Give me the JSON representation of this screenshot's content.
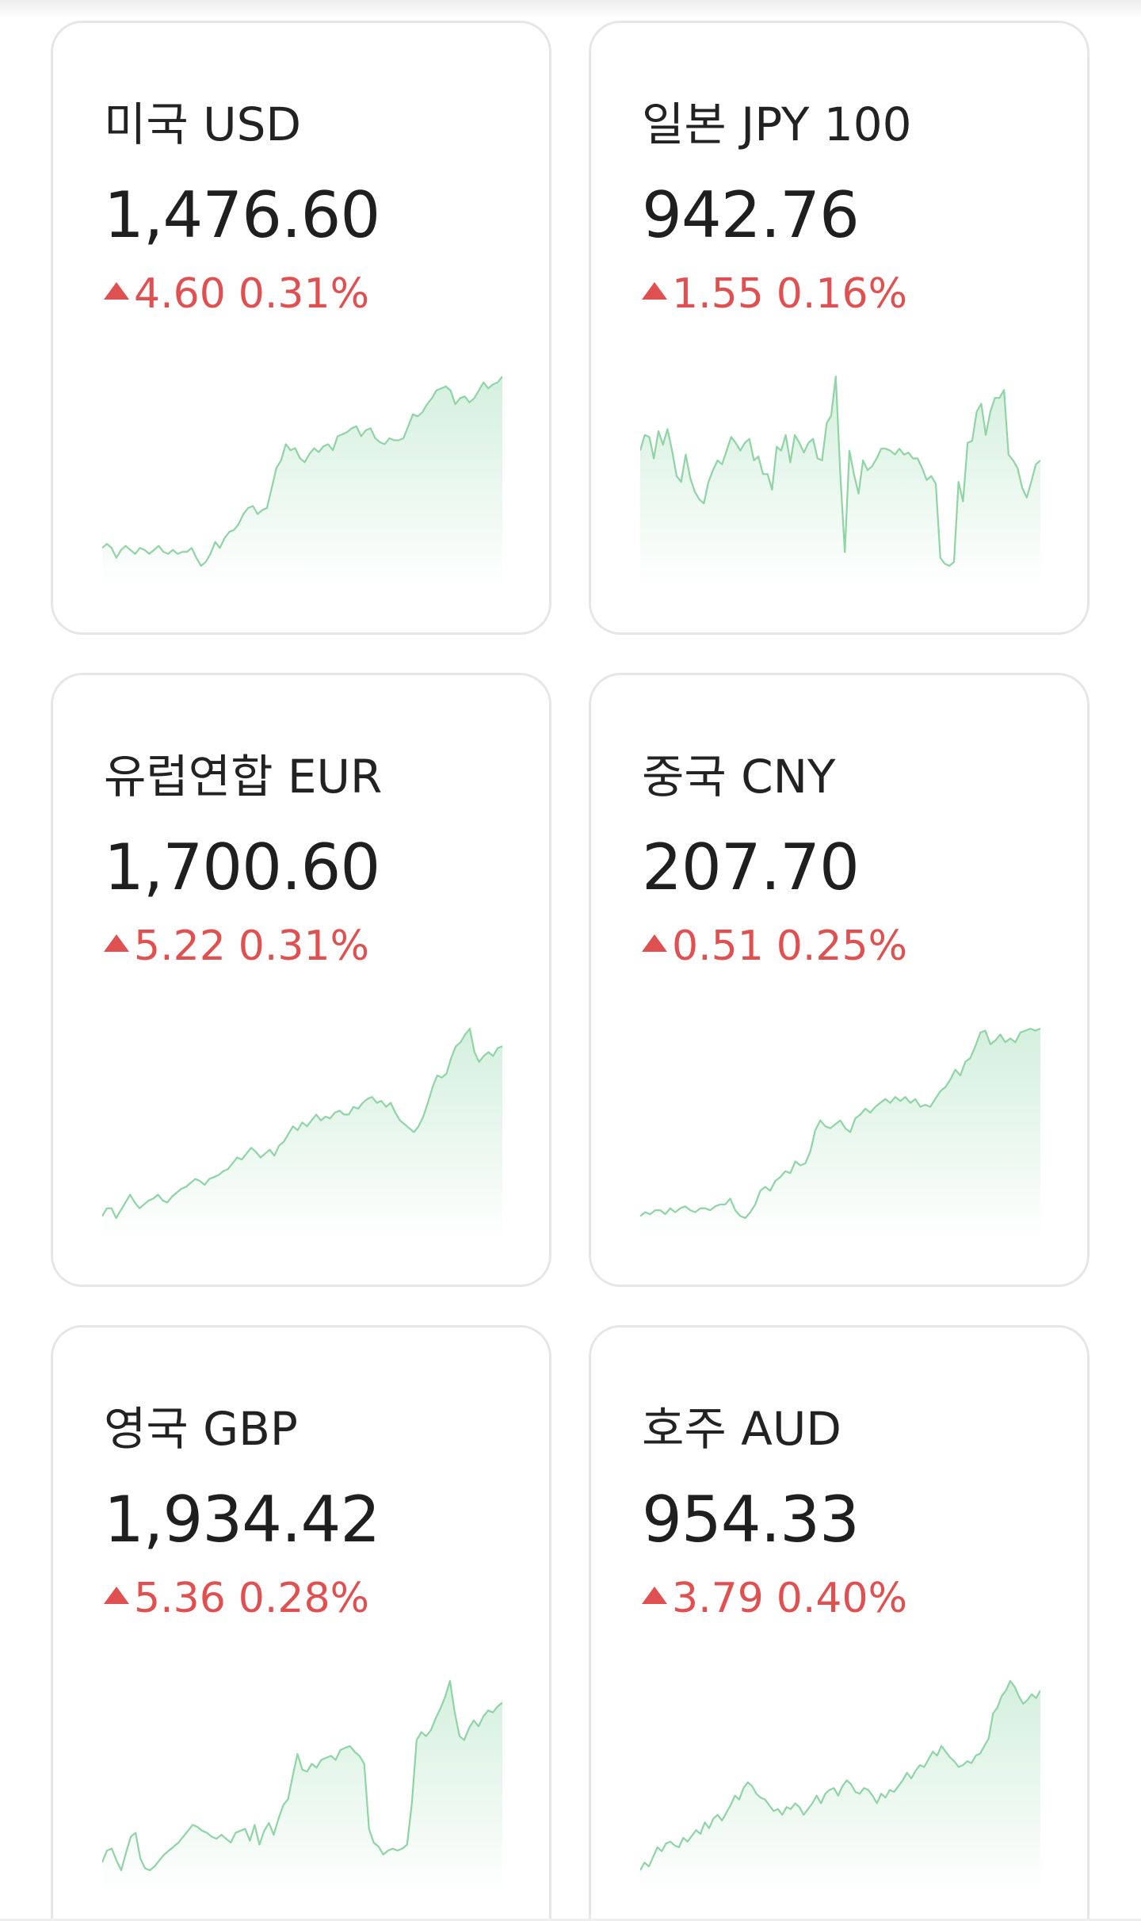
{
  "colors": {
    "up": "#e15050",
    "sparkline_stroke": "#8fd4a5",
    "sparkline_fill": "#cfeeda",
    "card_border": "#e6e6e6"
  },
  "cards": [
    {
      "title": "미국 USD",
      "value": "1,476.60",
      "direction": "up",
      "direction_icon": "triangle-up-icon",
      "change": "4.60",
      "change_pct": "0.31%",
      "sparkline": [
        14,
        16,
        14,
        9,
        13,
        15,
        13,
        11,
        14,
        13,
        11,
        13,
        15,
        12,
        11,
        13,
        11,
        12,
        12,
        14,
        9,
        5,
        7,
        11,
        17,
        14,
        19,
        22,
        23,
        26,
        31,
        34,
        35,
        31,
        33,
        34,
        44,
        54,
        58,
        66,
        63,
        64,
        59,
        57,
        61,
        64,
        62,
        65,
        66,
        63,
        70,
        71,
        72,
        74,
        75,
        70,
        73,
        74,
        69,
        67,
        66,
        69,
        68,
        68,
        69,
        75,
        81,
        80,
        82,
        86,
        89,
        93,
        94,
        95,
        93,
        86,
        89,
        90,
        87,
        89,
        93,
        97,
        94,
        96,
        97,
        100
      ]
    },
    {
      "title": "일본 JPY 100",
      "value": "942.76",
      "direction": "up",
      "direction_icon": "triangle-up-icon",
      "change": "1.55",
      "change_pct": "0.16%",
      "sparkline": [
        62,
        70,
        69,
        58,
        72,
        65,
        73,
        62,
        49,
        46,
        60,
        48,
        41,
        37,
        35,
        46,
        52,
        57,
        55,
        62,
        69,
        66,
        62,
        66,
        68,
        57,
        59,
        50,
        50,
        42,
        64,
        62,
        70,
        56,
        70,
        66,
        61,
        66,
        68,
        58,
        57,
        76,
        80,
        100,
        50,
        10,
        62,
        50,
        40,
        57,
        52,
        54,
        58,
        63,
        63,
        62,
        60,
        63,
        60,
        61,
        58,
        58,
        53,
        47,
        49,
        45,
        7,
        4,
        3,
        5,
        46,
        36,
        66,
        67,
        82,
        86,
        70,
        82,
        89,
        89,
        93,
        60,
        57,
        53,
        43,
        38,
        46,
        55,
        57
      ]
    },
    {
      "title": "유럽연합 EUR",
      "value": "1,700.60",
      "direction": "up",
      "direction_icon": "triangle-up-icon",
      "change": "5.22",
      "change_pct": "0.31%",
      "sparkline": [
        4,
        8,
        8,
        3,
        7,
        11,
        15,
        11,
        8,
        10,
        12,
        13,
        15,
        12,
        11,
        14,
        16,
        18,
        19,
        21,
        23,
        22,
        20,
        23,
        24,
        25,
        27,
        28,
        31,
        34,
        33,
        36,
        39,
        37,
        34,
        36,
        38,
        35,
        40,
        42,
        46,
        50,
        48,
        52,
        50,
        53,
        56,
        53,
        55,
        54,
        57,
        58,
        56,
        56,
        60,
        59,
        62,
        64,
        65,
        62,
        63,
        60,
        62,
        57,
        53,
        51,
        49,
        47,
        50,
        55,
        62,
        70,
        76,
        75,
        77,
        85,
        91,
        93,
        97,
        100,
        88,
        83,
        86,
        88,
        86,
        90,
        91
      ]
    },
    {
      "title": "중국 CNY",
      "value": "207.70",
      "direction": "up",
      "direction_icon": "triangle-up-icon",
      "change": "0.51",
      "change_pct": "0.25%",
      "sparkline": [
        4,
        6,
        5,
        7,
        7,
        5,
        8,
        6,
        8,
        9,
        7,
        6,
        8,
        8,
        7,
        9,
        10,
        10,
        13,
        7,
        4,
        3,
        6,
        10,
        17,
        19,
        17,
        22,
        24,
        27,
        26,
        32,
        30,
        31,
        37,
        48,
        53,
        50,
        49,
        51,
        53,
        49,
        47,
        54,
        56,
        59,
        57,
        60,
        62,
        64,
        62,
        65,
        63,
        65,
        62,
        64,
        60,
        61,
        60,
        64,
        68,
        70,
        74,
        79,
        76,
        83,
        85,
        91,
        98,
        99,
        92,
        94,
        97,
        93,
        95,
        93,
        98,
        99,
        100,
        99,
        100
      ]
    },
    {
      "title": "영국 GBP",
      "value": "1,934.42",
      "direction": "up",
      "direction_icon": "triangle-up-icon",
      "change": "5.36",
      "change_pct": "0.28%",
      "sparkline": [
        8,
        14,
        15,
        9,
        4,
        13,
        21,
        23,
        10,
        5,
        4,
        6,
        9,
        12,
        14,
        16,
        18,
        21,
        24,
        27,
        26,
        24,
        23,
        21,
        20,
        22,
        20,
        18,
        23,
        24,
        25,
        19,
        27,
        17,
        24,
        28,
        22,
        30,
        37,
        40,
        52,
        63,
        55,
        54,
        58,
        56,
        60,
        61,
        62,
        60,
        65,
        66,
        67,
        64,
        62,
        58,
        25,
        18,
        16,
        12,
        14,
        15,
        14,
        15,
        17,
        38,
        70,
        74,
        72,
        75,
        81,
        86,
        92,
        100,
        84,
        72,
        70,
        76,
        80,
        77,
        82,
        85,
        84,
        87,
        89
      ]
    },
    {
      "title": "호주 AUD",
      "value": "954.33",
      "direction": "up",
      "direction_icon": "triangle-up-icon",
      "change": "3.79",
      "change_pct": "0.40%",
      "sparkline": [
        1,
        5,
        3,
        8,
        13,
        11,
        15,
        16,
        14,
        13,
        18,
        16,
        19,
        22,
        20,
        26,
        23,
        28,
        30,
        27,
        31,
        35,
        40,
        38,
        44,
        47,
        45,
        41,
        39,
        38,
        35,
        32,
        33,
        30,
        34,
        33,
        36,
        34,
        30,
        33,
        36,
        40,
        36,
        41,
        43,
        44,
        40,
        45,
        48,
        46,
        42,
        41,
        44,
        43,
        40,
        36,
        41,
        39,
        43,
        42,
        45,
        48,
        52,
        49,
        53,
        56,
        55,
        59,
        63,
        61,
        66,
        63,
        60,
        58,
        55,
        56,
        58,
        57,
        61,
        62,
        66,
        70,
        83,
        86,
        92,
        95,
        100,
        97,
        92,
        88,
        90,
        93,
        91,
        95
      ]
    }
  ]
}
